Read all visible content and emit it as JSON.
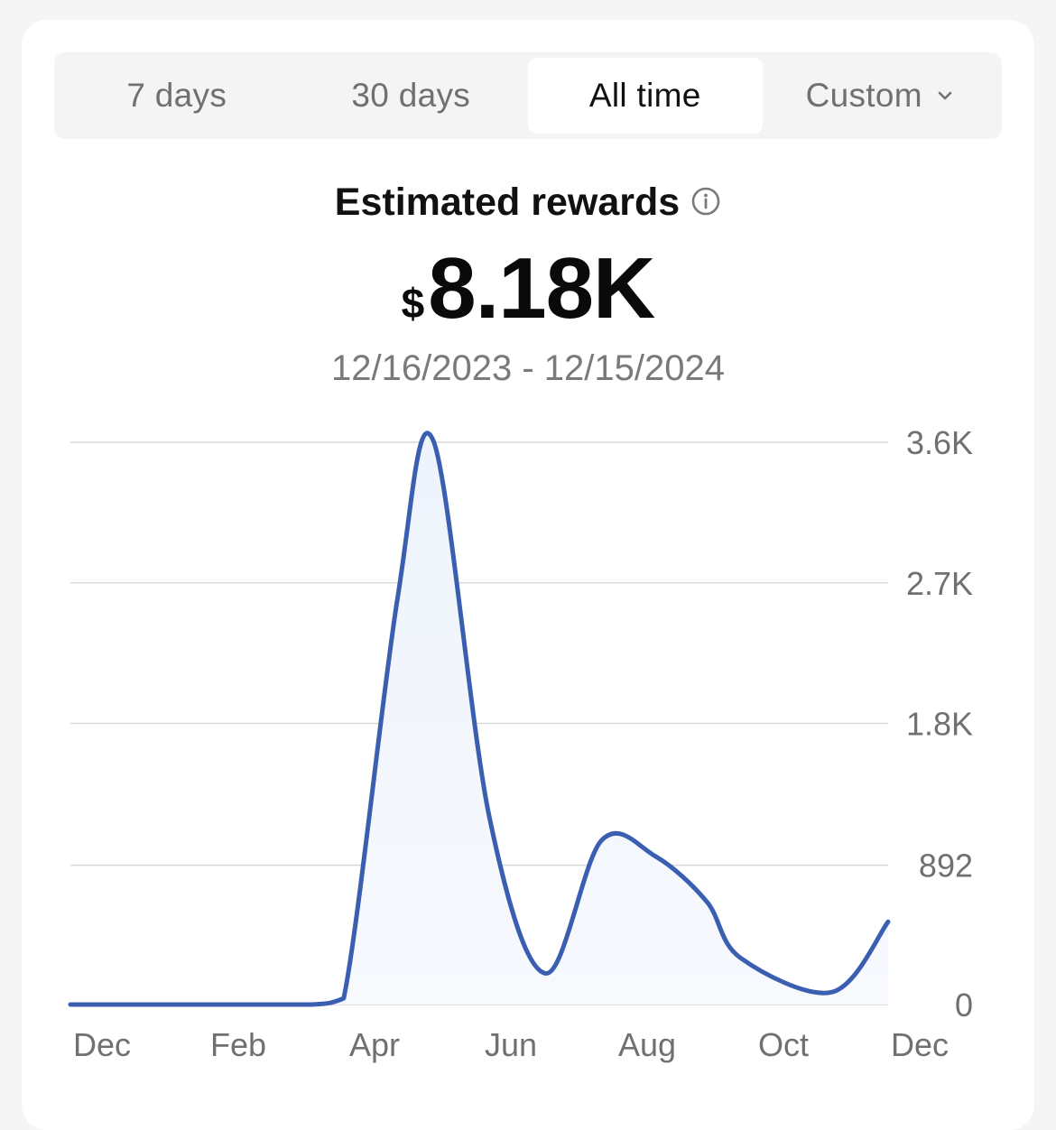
{
  "tabs": [
    {
      "label": "7 days"
    },
    {
      "label": "30 days"
    },
    {
      "label": "All time"
    },
    {
      "label": "Custom"
    }
  ],
  "active_tab": 2,
  "summary": {
    "title": "Estimated rewards",
    "currency_symbol": "$",
    "amount": "8.18K",
    "date_range": "12/16/2023 - 12/15/2024"
  },
  "icons": {
    "info": "info-icon",
    "dropdown": "chevron-down-icon"
  },
  "colors": {
    "line": "#3a5eb0",
    "fill": "#eef4fc",
    "grid": "#d9d9d9"
  },
  "chart_data": {
    "type": "area",
    "x": [
      "2023-12-16",
      "2024-01-15",
      "2024-02-14",
      "2024-03-15",
      "2024-04-02",
      "2024-04-16",
      "2024-05-10",
      "2024-05-26",
      "2024-06-20",
      "2024-07-15",
      "2024-08-09",
      "2024-09-02",
      "2024-09-25",
      "2024-10-10",
      "2024-11-20",
      "2024-12-15"
    ],
    "series": [
      {
        "values": [
          0,
          0,
          0,
          0,
          0,
          40,
          2600,
          3610,
          1200,
          200,
          1050,
          950,
          660,
          300,
          80,
          530
        ]
      }
    ],
    "x_tick_labels": [
      "Dec",
      "Feb",
      "Apr",
      "Jun",
      "Aug",
      "Oct",
      "Dec"
    ],
    "y_tick_labels": [
      "0",
      "892",
      "1.8K",
      "2.7K",
      "3.6K"
    ],
    "y_tick_values": [
      0,
      892,
      1800,
      2700,
      3600
    ],
    "ylim": [
      0,
      3600
    ],
    "grid": true
  }
}
